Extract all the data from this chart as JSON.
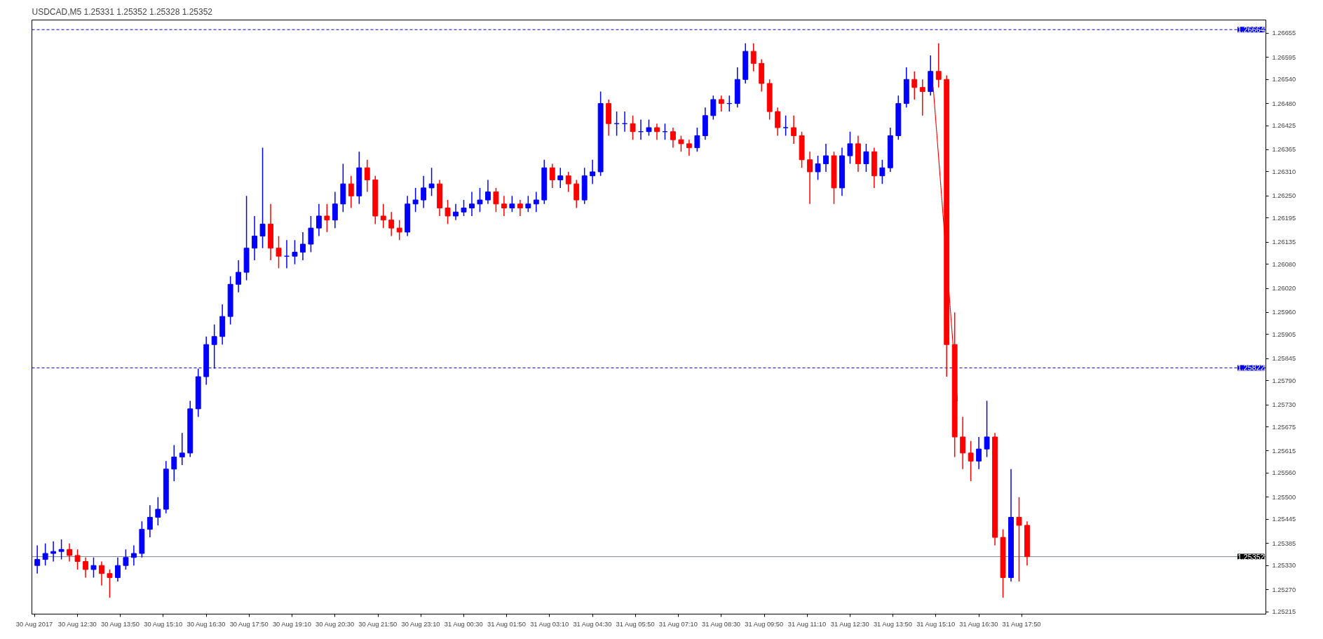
{
  "chart_data": {
    "type": "candlestick",
    "title": "USDCAD,M5  1.25331 1.25352 1.25328 1.25352",
    "colors": [
      "#0000ff",
      "#0000ff",
      "#0000ff",
      "#0000ff",
      "#ff0000",
      "#ff0000",
      "#ff0000",
      "#0000ff",
      "#ff0000",
      "#ff0000",
      "#0000ff",
      "#0000ff",
      "#0000ff",
      "#0000ff",
      "#0000ff",
      "#0000ff",
      "#0000ff",
      "#0000ff",
      "#0000ff",
      "#0000ff",
      "#0000ff",
      "#0000ff",
      "#0000ff",
      "#0000ff",
      "#0000ff",
      "#0000ff",
      "#0000ff",
      "#0000ff",
      "#0000ff",
      "#ff0000",
      "#ff0000",
      "#0000ff",
      "#0000ff",
      "#0000ff",
      "#0000ff",
      "#0000ff",
      "#ff0000",
      "#0000ff",
      "#0000ff",
      "#ff0000",
      "#0000ff",
      "#ff0000",
      "#ff0000",
      "#ff0000",
      "#ff0000",
      "#ff0000",
      "#0000ff",
      "#0000ff",
      "#0000ff",
      "#0000ff",
      "#ff0000",
      "#ff0000",
      "#0000ff",
      "#0000ff",
      "#0000ff",
      "#0000ff",
      "#0000ff",
      "#ff0000",
      "#ff0000",
      "#0000ff",
      "#ff0000",
      "#0000ff",
      "#0000ff",
      "#0000ff",
      "#ff0000",
      "#0000ff",
      "#ff0000",
      "#ff0000",
      "#0000ff",
      "#0000ff",
      "#0000ff",
      "#ff0000",
      "#0000ff",
      "#0000ff",
      "#ff0000",
      "#0000ff",
      "#0000ff",
      "#ff0000",
      "#0000ff",
      "#ff0000",
      "#ff0000",
      "#ff0000",
      "#0000ff",
      "#0000ff",
      "#0000ff",
      "#ff0000",
      "#0000ff",
      "#0000ff",
      "#0000ff",
      "#ff0000",
      "#ff0000",
      "#ff0000",
      "#ff0000",
      "#0000ff",
      "#ff0000",
      "#ff0000",
      "#ff0000",
      "#0000ff",
      "#0000ff",
      "#ff0000",
      "#0000ff",
      "#0000ff",
      "#ff0000",
      "#0000ff",
      "#ff0000",
      "#0000ff",
      "#0000ff",
      "#0000ff",
      "#0000ff",
      "#ff0000",
      "#ff0000",
      "#0000ff",
      "#ff0000",
      "#ff0000",
      "#ff0000",
      "#ff0000",
      "#ff0000",
      "#0000ff",
      "#0000ff",
      "#ff0000",
      "#ff0000",
      "#0000ff",
      "#ff0000",
      "#ff0000"
    ],
    "x": [
      "2017-08-30T11:15",
      "2017-08-30T11:30",
      "2017-08-30T11:45",
      "2017-08-30T12:00",
      "2017-08-30T12:15",
      "2017-08-30T12:30",
      "2017-08-30T12:45",
      "2017-08-30T13:00",
      "2017-08-30T13:15",
      "2017-08-30T13:30",
      "2017-08-30T13:45",
      "2017-08-30T14:00",
      "2017-08-30T14:15",
      "2017-08-30T14:30",
      "2017-08-30T14:45",
      "2017-08-30T15:00",
      "2017-08-30T15:15",
      "2017-08-30T15:30",
      "2017-08-30T15:45",
      "2017-08-30T16:00",
      "2017-08-30T16:15",
      "2017-08-30T16:30",
      "2017-08-30T16:45",
      "2017-08-30T17:00",
      "2017-08-30T17:15",
      "2017-08-30T17:30",
      "2017-08-30T17:45",
      "2017-08-30T18:00",
      "2017-08-30T18:15",
      "2017-08-30T18:30",
      "2017-08-30T18:45",
      "2017-08-30T19:00",
      "2017-08-30T19:15",
      "2017-08-30T19:30",
      "2017-08-30T19:45",
      "2017-08-30T20:00",
      "2017-08-30T20:15",
      "2017-08-30T20:30",
      "2017-08-30T20:45",
      "2017-08-30T21:00",
      "2017-08-30T21:15",
      "2017-08-30T21:30",
      "2017-08-30T21:45",
      "2017-08-30T22:00",
      "2017-08-30T22:15",
      "2017-08-30T22:30",
      "2017-08-30T22:45",
      "2017-08-30T23:00",
      "2017-08-30T23:15",
      "2017-08-30T23:30",
      "2017-08-30T23:45",
      "2017-08-31T00:00",
      "2017-08-31T00:15",
      "2017-08-31T00:30",
      "2017-08-31T00:45",
      "2017-08-31T01:00",
      "2017-08-31T01:15",
      "2017-08-31T01:30",
      "2017-08-31T01:45",
      "2017-08-31T02:00",
      "2017-08-31T02:15",
      "2017-08-31T02:30",
      "2017-08-31T02:45",
      "2017-08-31T03:00",
      "2017-08-31T03:15",
      "2017-08-31T03:30",
      "2017-08-31T03:45",
      "2017-08-31T04:00",
      "2017-08-31T04:15",
      "2017-08-31T04:30",
      "2017-08-31T04:45",
      "2017-08-31T05:00",
      "2017-08-31T05:15",
      "2017-08-31T05:30",
      "2017-08-31T05:45",
      "2017-08-31T06:00",
      "2017-08-31T06:15",
      "2017-08-31T06:30",
      "2017-08-31T06:45",
      "2017-08-31T07:00",
      "2017-08-31T07:15",
      "2017-08-31T07:30",
      "2017-08-31T07:45",
      "2017-08-31T08:00",
      "2017-08-31T08:15",
      "2017-08-31T08:30",
      "2017-08-31T08:45",
      "2017-08-31T09:00",
      "2017-08-31T09:15",
      "2017-08-31T09:30",
      "2017-08-31T09:45",
      "2017-08-31T10:00",
      "2017-08-31T10:15",
      "2017-08-31T10:30",
      "2017-08-31T10:45",
      "2017-08-31T11:00",
      "2017-08-31T11:15",
      "2017-08-31T11:30",
      "2017-08-31T11:45",
      "2017-08-31T12:00",
      "2017-08-31T12:15",
      "2017-08-31T12:30",
      "2017-08-31T12:45",
      "2017-08-31T13:00",
      "2017-08-31T13:15",
      "2017-08-31T13:30",
      "2017-08-31T13:45",
      "2017-08-31T14:00",
      "2017-08-31T14:15",
      "2017-08-31T14:30",
      "2017-08-31T14:45",
      "2017-08-31T15:00",
      "2017-08-31T15:15",
      "2017-08-31T15:30",
      "2017-08-31T15:45",
      "2017-08-31T16:00",
      "2017-08-31T16:15",
      "2017-08-31T16:30",
      "2017-08-31T16:45",
      "2017-08-31T17:00",
      "2017-08-31T17:15",
      "2017-08-31T17:30",
      "2017-08-31T17:45",
      "2017-08-31T18:00"
    ],
    "ohlc": [
      [
        1.2533,
        1.2538,
        1.2531,
        1.25345
      ],
      [
        1.25345,
        1.25385,
        1.2533,
        1.2536
      ],
      [
        1.2536,
        1.2539,
        1.2534,
        1.25365
      ],
      [
        1.25365,
        1.25395,
        1.25345,
        1.2537
      ],
      [
        1.2537,
        1.25385,
        1.2534,
        1.25355
      ],
      [
        1.25355,
        1.2537,
        1.2532,
        1.2534
      ],
      [
        1.2534,
        1.2535,
        1.253,
        1.2532
      ],
      [
        1.2532,
        1.2535,
        1.253,
        1.2533
      ],
      [
        1.2533,
        1.2534,
        1.2528,
        1.2531
      ],
      [
        1.2531,
        1.2532,
        1.2525,
        1.253
      ],
      [
        1.253,
        1.2535,
        1.2529,
        1.2533
      ],
      [
        1.2533,
        1.2537,
        1.2532,
        1.2535
      ],
      [
        1.2535,
        1.2538,
        1.2533,
        1.2536
      ],
      [
        1.2536,
        1.2544,
        1.2535,
        1.2542
      ],
      [
        1.2542,
        1.2548,
        1.254,
        1.2545
      ],
      [
        1.2545,
        1.255,
        1.2543,
        1.2547
      ],
      [
        1.2547,
        1.2559,
        1.2546,
        1.2557
      ],
      [
        1.2557,
        1.2563,
        1.2554,
        1.256
      ],
      [
        1.256,
        1.2566,
        1.2558,
        1.2561
      ],
      [
        1.2561,
        1.2574,
        1.256,
        1.2572
      ],
      [
        1.2572,
        1.2582,
        1.257,
        1.258
      ],
      [
        1.258,
        1.259,
        1.2578,
        1.2588
      ],
      [
        1.2588,
        1.2593,
        1.2582,
        1.259
      ],
      [
        1.259,
        1.2598,
        1.2588,
        1.2595
      ],
      [
        1.2595,
        1.2605,
        1.2593,
        1.2603
      ],
      [
        1.2603,
        1.2609,
        1.2601,
        1.2606
      ],
      [
        1.2606,
        1.2625,
        1.2604,
        1.2612
      ],
      [
        1.2612,
        1.262,
        1.2609,
        1.2615
      ],
      [
        1.2615,
        1.2637,
        1.2612,
        1.2618
      ],
      [
        1.2618,
        1.2623,
        1.2609,
        1.2612
      ],
      [
        1.2612,
        1.2615,
        1.2607,
        1.261
      ],
      [
        1.261,
        1.2614,
        1.2607,
        1.261
      ],
      [
        1.261,
        1.2614,
        1.2608,
        1.2611
      ],
      [
        1.2611,
        1.2616,
        1.2609,
        1.2613
      ],
      [
        1.2613,
        1.262,
        1.2611,
        1.2617
      ],
      [
        1.2617,
        1.2623,
        1.2615,
        1.262
      ],
      [
        1.262,
        1.2623,
        1.2616,
        1.2619
      ],
      [
        1.2619,
        1.2626,
        1.2617,
        1.2623
      ],
      [
        1.2623,
        1.2633,
        1.2621,
        1.2628
      ],
      [
        1.2628,
        1.263,
        1.2622,
        1.2625
      ],
      [
        1.2625,
        1.2636,
        1.2623,
        1.2632
      ],
      [
        1.2632,
        1.2634,
        1.2626,
        1.2629
      ],
      [
        1.2629,
        1.263,
        1.2618,
        1.262
      ],
      [
        1.262,
        1.2623,
        1.2617,
        1.2619
      ],
      [
        1.2619,
        1.2621,
        1.2615,
        1.2617
      ],
      [
        1.2617,
        1.2619,
        1.2614,
        1.2616
      ],
      [
        1.2616,
        1.2625,
        1.2615,
        1.2623
      ],
      [
        1.2623,
        1.2627,
        1.2621,
        1.2624
      ],
      [
        1.2624,
        1.263,
        1.2622,
        1.2627
      ],
      [
        1.2627,
        1.2632,
        1.2625,
        1.2628
      ],
      [
        1.2628,
        1.2629,
        1.262,
        1.2622
      ],
      [
        1.2622,
        1.2624,
        1.2618,
        1.262
      ],
      [
        1.262,
        1.2623,
        1.2619,
        1.2621
      ],
      [
        1.2621,
        1.2624,
        1.262,
        1.2622
      ],
      [
        1.2622,
        1.2626,
        1.262,
        1.2623
      ],
      [
        1.2623,
        1.2627,
        1.2621,
        1.2624
      ],
      [
        1.2624,
        1.2629,
        1.2623,
        1.2626
      ],
      [
        1.2626,
        1.2627,
        1.2621,
        1.2623
      ],
      [
        1.2623,
        1.2625,
        1.262,
        1.2622
      ],
      [
        1.2622,
        1.2625,
        1.2621,
        1.2623
      ],
      [
        1.2623,
        1.2624,
        1.262,
        1.2622
      ],
      [
        1.2622,
        1.2625,
        1.2621,
        1.2623
      ],
      [
        1.2623,
        1.2626,
        1.2621,
        1.2624
      ],
      [
        1.2624,
        1.2634,
        1.2623,
        1.2632
      ],
      [
        1.2632,
        1.2633,
        1.2627,
        1.2629
      ],
      [
        1.2629,
        1.2632,
        1.2627,
        1.263
      ],
      [
        1.263,
        1.2631,
        1.2626,
        1.2628
      ],
      [
        1.2628,
        1.2629,
        1.2622,
        1.2624
      ],
      [
        1.2624,
        1.2632,
        1.2623,
        1.263
      ],
      [
        1.263,
        1.2634,
        1.2628,
        1.2631
      ],
      [
        1.2631,
        1.2651,
        1.263,
        1.2648
      ],
      [
        1.2648,
        1.2649,
        1.264,
        1.2643
      ],
      [
        1.2643,
        1.2646,
        1.264,
        1.2643
      ],
      [
        1.2643,
        1.2646,
        1.2641,
        1.2643
      ],
      [
        1.2643,
        1.2645,
        1.2639,
        1.2641
      ],
      [
        1.2641,
        1.2644,
        1.2639,
        1.2641
      ],
      [
        1.2641,
        1.2644,
        1.264,
        1.2642
      ],
      [
        1.2642,
        1.2643,
        1.2639,
        1.2641
      ],
      [
        1.2641,
        1.2643,
        1.2639,
        1.2641
      ],
      [
        1.2641,
        1.2642,
        1.2637,
        1.2639
      ],
      [
        1.2639,
        1.264,
        1.2636,
        1.2638
      ],
      [
        1.2638,
        1.2639,
        1.2635,
        1.2637
      ],
      [
        1.2637,
        1.2642,
        1.2636,
        1.264
      ],
      [
        1.264,
        1.2647,
        1.2639,
        1.2645
      ],
      [
        1.2645,
        1.265,
        1.2644,
        1.2649
      ],
      [
        1.2649,
        1.265,
        1.2646,
        1.2648
      ],
      [
        1.2648,
        1.265,
        1.2646,
        1.2648
      ],
      [
        1.2648,
        1.2657,
        1.2647,
        1.2654
      ],
      [
        1.2654,
        1.2663,
        1.2653,
        1.2661
      ],
      [
        1.2661,
        1.2663,
        1.2656,
        1.2658
      ],
      [
        1.2658,
        1.2659,
        1.2651,
        1.2653
      ],
      [
        1.2653,
        1.2654,
        1.2644,
        1.2646
      ],
      [
        1.2646,
        1.2647,
        1.264,
        1.2642
      ],
      [
        1.2642,
        1.2645,
        1.264,
        1.2642
      ],
      [
        1.2642,
        1.2645,
        1.2638,
        1.264
      ],
      [
        1.264,
        1.2641,
        1.2632,
        1.2634
      ],
      [
        1.2634,
        1.2636,
        1.2623,
        1.2631
      ],
      [
        1.2631,
        1.2635,
        1.2629,
        1.2633
      ],
      [
        1.2633,
        1.2638,
        1.2631,
        1.2635
      ],
      [
        1.2635,
        1.2636,
        1.2623,
        1.2627
      ],
      [
        1.2627,
        1.2637,
        1.2625,
        1.2635
      ],
      [
        1.2635,
        1.2641,
        1.2633,
        1.2638
      ],
      [
        1.2638,
        1.264,
        1.2631,
        1.2633
      ],
      [
        1.2633,
        1.2638,
        1.2631,
        1.2636
      ],
      [
        1.2636,
        1.2637,
        1.2627,
        1.263
      ],
      [
        1.263,
        1.2634,
        1.2628,
        1.2632
      ],
      [
        1.2632,
        1.2642,
        1.2631,
        1.264
      ],
      [
        1.264,
        1.265,
        1.2639,
        1.2648
      ],
      [
        1.2648,
        1.2657,
        1.2647,
        1.2654
      ],
      [
        1.2654,
        1.2656,
        1.2649,
        1.2652
      ],
      [
        1.2652,
        1.2654,
        1.2645,
        1.2651
      ],
      [
        1.2651,
        1.266,
        1.265,
        1.2656
      ],
      [
        1.2656,
        1.2663,
        1.2652,
        1.2654
      ],
      [
        1.2654,
        1.2655,
        1.258,
        1.2588
      ],
      [
        1.2588,
        1.2596,
        1.256,
        1.2565
      ],
      [
        1.2565,
        1.257,
        1.2557,
        1.2561
      ],
      [
        1.2561,
        1.2564,
        1.2554,
        1.2559
      ],
      [
        1.2559,
        1.2565,
        1.2557,
        1.2562
      ],
      [
        1.2562,
        1.2574,
        1.256,
        1.2565
      ],
      [
        1.2565,
        1.2566,
        1.2538,
        1.254
      ],
      [
        1.254,
        1.2542,
        1.2525,
        1.253
      ],
      [
        1.253,
        1.2557,
        1.2529,
        1.2545
      ],
      [
        1.2545,
        1.255,
        1.2529,
        1.2543
      ],
      [
        1.2543,
        1.2544,
        1.2533,
        1.25352
      ]
    ],
    "series": [
      {
        "type": "line",
        "color": "#ff0000",
        "line_style": "dotted",
        "x": [
          "2017-08-31T15:05",
          "2017-08-31T15:50"
        ],
        "values": [
          1.2652,
          1.2574
        ]
      }
    ],
    "xlim": [
      "2017-08-30T11:05",
      "2017-09-01T01:25"
    ],
    "xticks": [
      {
        "value": "2017-08-30T11:10",
        "label": "30 Aug 2017"
      },
      {
        "value": "2017-08-30T12:30",
        "label": "30 Aug 12:30"
      },
      {
        "value": "2017-08-30T13:50",
        "label": "30 Aug 13:50"
      },
      {
        "value": "2017-08-30T15:10",
        "label": "30 Aug 15:10"
      },
      {
        "value": "2017-08-30T16:30",
        "label": "30 Aug 16:30"
      },
      {
        "value": "2017-08-30T17:50",
        "label": "30 Aug 17:50"
      },
      {
        "value": "2017-08-30T19:10",
        "label": "30 Aug 19:10"
      },
      {
        "value": "2017-08-30T20:30",
        "label": "30 Aug 20:30"
      },
      {
        "value": "2017-08-30T21:50",
        "label": "30 Aug 21:50"
      },
      {
        "value": "2017-08-30T23:10",
        "label": "30 Aug 23:10"
      },
      {
        "value": "2017-08-31T00:30",
        "label": "31 Aug 00:30"
      },
      {
        "value": "2017-08-31T01:50",
        "label": "31 Aug 01:50"
      },
      {
        "value": "2017-08-31T03:10",
        "label": "31 Aug 03:10"
      },
      {
        "value": "2017-08-31T04:30",
        "label": "31 Aug 04:30"
      },
      {
        "value": "2017-08-31T05:50",
        "label": "31 Aug 05:50"
      },
      {
        "value": "2017-08-31T07:10",
        "label": "31 Aug 07:10"
      },
      {
        "value": "2017-08-31T08:30",
        "label": "31 Aug 08:30"
      },
      {
        "value": "2017-08-31T09:50",
        "label": "31 Aug 09:50"
      },
      {
        "value": "2017-08-31T11:10",
        "label": "31 Aug 11:10"
      },
      {
        "value": "2017-08-31T12:30",
        "label": "31 Aug 12:30"
      },
      {
        "value": "2017-08-31T13:50",
        "label": "31 Aug 13:50"
      },
      {
        "value": "2017-08-31T15:10",
        "label": "31 Aug 15:10"
      },
      {
        "value": "2017-08-31T16:30",
        "label": "31 Aug 16:30"
      },
      {
        "value": "2017-08-31T17:50",
        "label": "31 Aug 17:50"
      }
    ],
    "ylim": [
      1.25209,
      1.26688
    ],
    "yticks": [
      {
        "value": 1.26655,
        "label": "1.26655"
      },
      {
        "value": 1.26595,
        "label": "1.26595"
      },
      {
        "value": 1.2654,
        "label": "1.26540"
      },
      {
        "value": 1.2648,
        "label": "1.26480"
      },
      {
        "value": 1.26425,
        "label": "1.26425"
      },
      {
        "value": 1.26365,
        "label": "1.26365"
      },
      {
        "value": 1.2631,
        "label": "1.26310"
      },
      {
        "value": 1.2625,
        "label": "1.26250"
      },
      {
        "value": 1.26195,
        "label": "1.26195"
      },
      {
        "value": 1.26135,
        "label": "1.26135"
      },
      {
        "value": 1.2608,
        "label": "1.26080"
      },
      {
        "value": 1.2602,
        "label": "1.26020"
      },
      {
        "value": 1.2596,
        "label": "1.25960"
      },
      {
        "value": 1.25905,
        "label": "1.25905"
      },
      {
        "value": 1.25845,
        "label": "1.25845"
      },
      {
        "value": 1.2579,
        "label": "1.25790"
      },
      {
        "value": 1.2573,
        "label": "1.25730"
      },
      {
        "value": 1.25675,
        "label": "1.25675"
      },
      {
        "value": 1.25615,
        "label": "1.25615"
      },
      {
        "value": 1.2556,
        "label": "1.25560"
      },
      {
        "value": 1.255,
        "label": "1.25500"
      },
      {
        "value": 1.25445,
        "label": "1.25445"
      },
      {
        "value": 1.25385,
        "label": "1.25385"
      },
      {
        "value": 1.2533,
        "label": "1.25330"
      },
      {
        "value": 1.2527,
        "label": "1.25270"
      },
      {
        "value": 1.25215,
        "label": "1.25215"
      }
    ],
    "ref_lines": [
      {
        "axis": "y",
        "value": 1.26664,
        "label": "1.26664",
        "color": "#0000ff",
        "line_style": "dashed"
      },
      {
        "axis": "y",
        "value": 1.25822,
        "label": "1.25822",
        "color": "#0000ff",
        "line_style": "dashed"
      },
      {
        "axis": "y",
        "value": 1.25352,
        "label": "1.25352",
        "color": "#778899",
        "line_style": "solid"
      }
    ],
    "grid": false
  }
}
